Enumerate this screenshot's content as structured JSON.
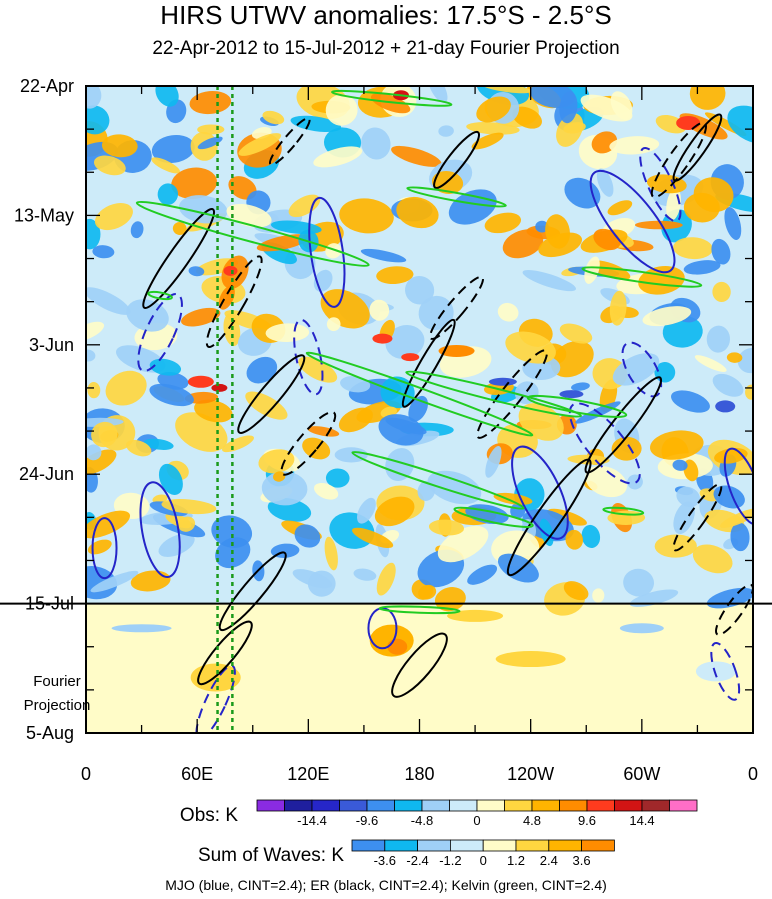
{
  "chart_data": {
    "type": "heatmap",
    "title": "HIRS UTWV anomalies: 17.5°S - 2.5°S",
    "subtitle": "22-Apr-2012 to 15-Jul-2012 + 21-day Fourier Projection",
    "x_ticks": [
      {
        "label": "0",
        "lon": 0
      },
      {
        "label": "60E",
        "lon": 60
      },
      {
        "label": "120E",
        "lon": 120
      },
      {
        "label": "180",
        "lon": 180
      },
      {
        "label": "120W",
        "lon": 240
      },
      {
        "label": "60W",
        "lon": 300
      },
      {
        "label": "0",
        "lon": 360
      }
    ],
    "xlim": [
      0,
      360
    ],
    "y_ticks": [
      {
        "label": "22-Apr",
        "day": 0
      },
      {
        "label": "13-May",
        "day": 21
      },
      {
        "label": "3-Jun",
        "day": 42
      },
      {
        "label": "24-Jun",
        "day": 63
      },
      {
        "label": "15-Jul",
        "day": 84
      },
      {
        "label": "5-Aug",
        "day": 105
      }
    ],
    "ylim_days": [
      0,
      105
    ],
    "forecast_start_day": 84,
    "forecast_label": [
      "Fourier",
      "Projection"
    ],
    "reference_longitudes": [
      71,
      79
    ],
    "obs_colorbar": {
      "title": "Obs: K",
      "colors": [
        "#8a2be2",
        "#1f1f9e",
        "#2626c8",
        "#3a5ad8",
        "#3d8ff0",
        "#0fb8f0",
        "#9fd0f7",
        "#cdebf9",
        "#fffcc8",
        "#ffd640",
        "#ffb400",
        "#ff8c00",
        "#ff3b1e",
        "#d21414",
        "#a0282a",
        "#ff6ec7"
      ],
      "tick_labels": [
        "-14.4",
        "-9.6",
        "-4.8",
        "0",
        "4.8",
        "9.6",
        "14.4"
      ]
    },
    "waves_colorbar": {
      "title": "Sum of Waves: K",
      "colors": [
        "#3d8ff0",
        "#0fb8f0",
        "#9fd0f7",
        "#cdebf9",
        "#fffcc8",
        "#ffd640",
        "#ffb400",
        "#ff8c00"
      ],
      "tick_labels": [
        "-3.6",
        "-2.4",
        "-1.2",
        "0",
        "1.2",
        "2.4",
        "3.6"
      ]
    },
    "footnote": "MJO (blue, CINT=2.4); ER (black, CINT=2.4); Kelvin (green, CINT=2.4)",
    "field_colors": {
      "blue_strong": "#3a5ad8",
      "blue": "#3d8ff0",
      "blue_light": "#0fb8f0",
      "blue_pale": "#9fd0f7",
      "blue_faint": "#cdebf9",
      "yellow_faint": "#fffcc8",
      "yellow": "#ffd640",
      "orange": "#ffb400",
      "orange_dark": "#ff8c00",
      "red": "#ff3b1e",
      "red_dark": "#d21414"
    },
    "mjo_color": "#2424c8",
    "er_color": "#000000",
    "kelvin_color": "#22cc22",
    "reference_line_color": "#1a9a1a"
  }
}
